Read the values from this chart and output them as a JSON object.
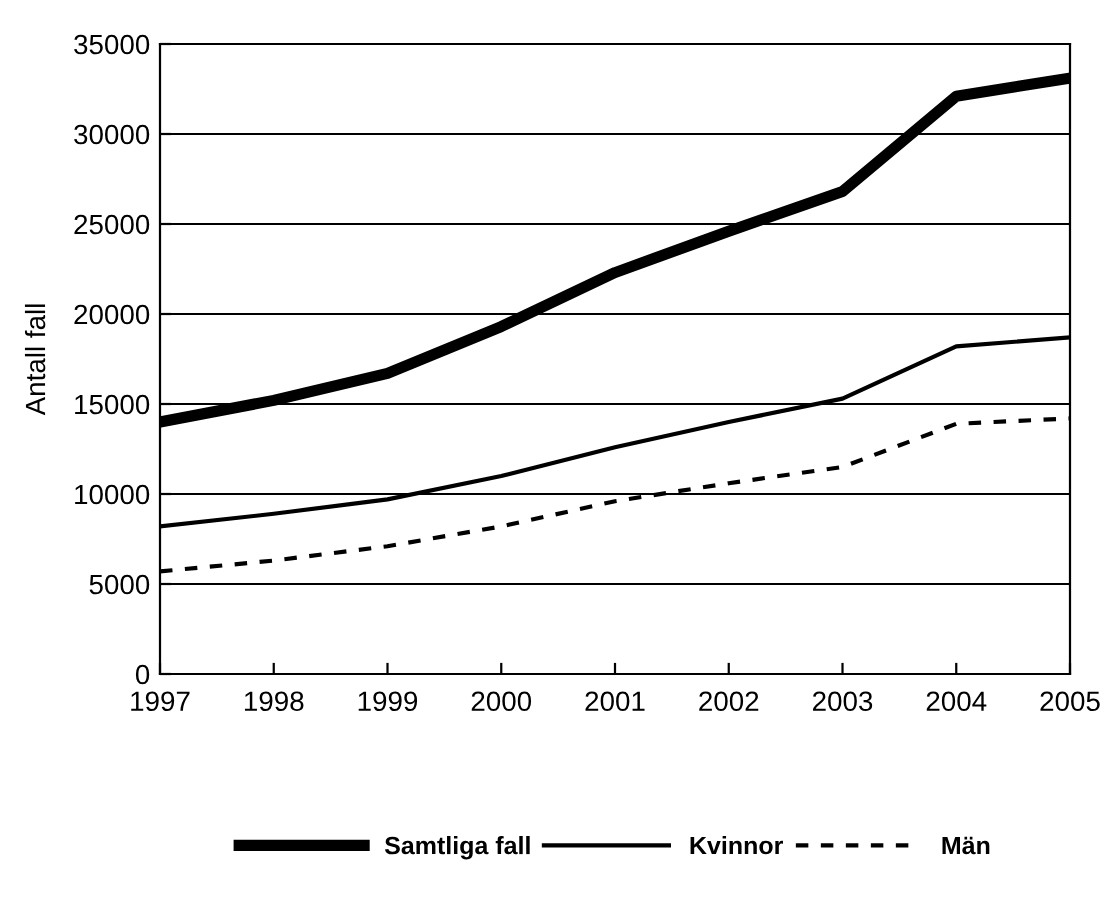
{
  "chart_data": {
    "type": "line",
    "ylabel": "Antall fall",
    "x": [
      1997,
      1998,
      1999,
      2000,
      2001,
      2002,
      2003,
      2004,
      2005
    ],
    "series": [
      {
        "name": "Samtliga fall",
        "color": "#000000",
        "values": [
          14000,
          15200,
          16700,
          19300,
          22300,
          24600,
          26800,
          32100,
          33100
        ]
      },
      {
        "name": "Kvinnor",
        "color": "#000000",
        "values": [
          8200,
          8900,
          9700,
          11000,
          12600,
          14000,
          15300,
          18200,
          18700
        ]
      },
      {
        "name": "Män",
        "color": "#000000",
        "values": [
          5700,
          6300,
          7100,
          8200,
          9600,
          10600,
          11500,
          13900,
          14200
        ],
        "line_style": "dashed"
      }
    ],
    "xlim": [
      1997,
      2005
    ],
    "xticks": [
      1997,
      1998,
      1999,
      2000,
      2001,
      2002,
      2003,
      2004,
      2005
    ],
    "ylim": [
      0,
      35000
    ],
    "yticks": [
      0,
      5000,
      10000,
      15000,
      20000,
      25000,
      30000,
      35000
    ],
    "grid": "y",
    "legend": "bottom",
    "line_style": "solid",
    "marker": "none"
  }
}
